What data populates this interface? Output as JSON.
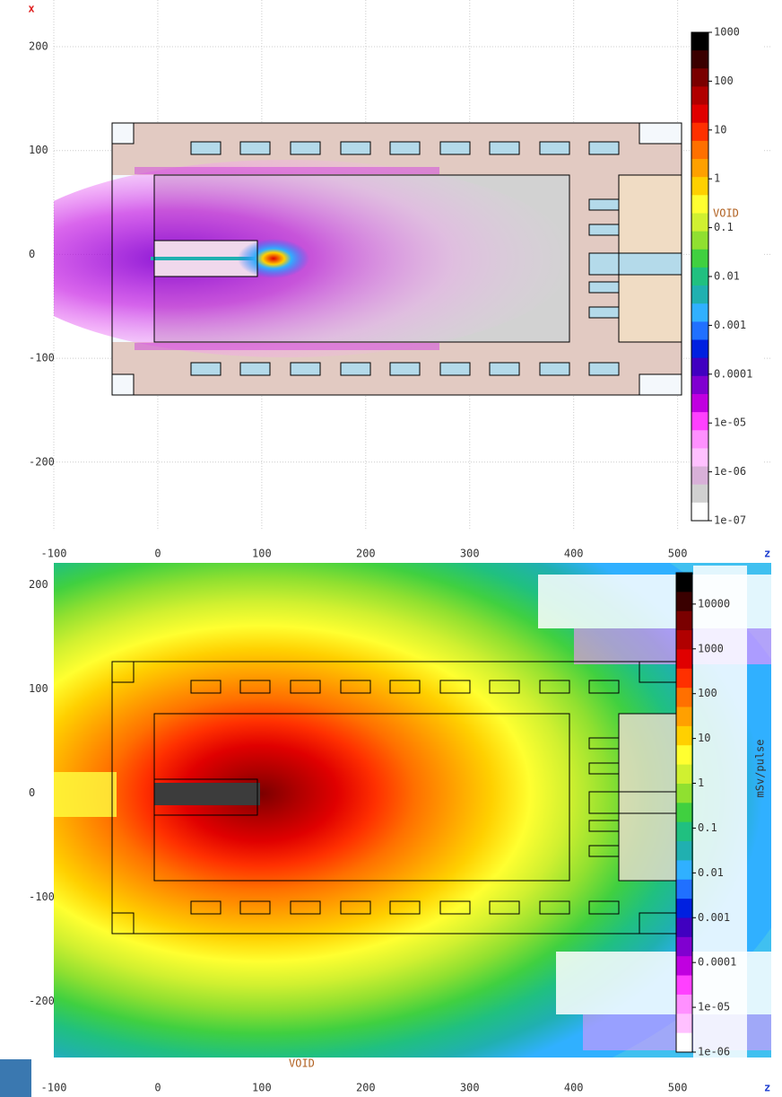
{
  "chart_data": [
    {
      "type": "heatmap",
      "x_label": "z",
      "y_label": "x",
      "xlim": [
        -100,
        590
      ],
      "xticks": [
        -100,
        0,
        100,
        200,
        300,
        400,
        500
      ],
      "ylim": [
        -265,
        245
      ],
      "yticks": [
        -200,
        -100,
        0,
        100,
        200
      ],
      "grid": true,
      "colorbar": {
        "clim": [
          1e-07,
          1000
        ],
        "ticks": [
          1000,
          100,
          10,
          1,
          0.1,
          0.01,
          0.001,
          0.0001,
          {
            "value": 1e-05,
            "label": "1e-05"
          },
          {
            "value": 1e-06,
            "label": "1e-06"
          },
          {
            "value": 1e-07,
            "label": "1e-07"
          }
        ],
        "annotation": "VOID",
        "colors": [
          "#000000",
          "#3a0000",
          "#7a0000",
          "#b00000",
          "#e00000",
          "#ff3000",
          "#ff7000",
          "#ffa000",
          "#ffd000",
          "#ffff30",
          "#d0f030",
          "#90e030",
          "#40d040",
          "#20c080",
          "#20b0b0",
          "#30b0ff",
          "#2070ff",
          "#0020e0",
          "#4000c0",
          "#8000d0",
          "#c000e0",
          "#ff40ff",
          "#ff90ff",
          "#ffc0ff",
          "#d8b0d8",
          "#d0d0d0",
          "#ffffff"
        ]
      }
    },
    {
      "type": "heatmap",
      "x_label": "z",
      "xlim": [
        -100,
        590
      ],
      "xticks": [
        -100,
        0,
        100,
        200,
        300,
        400,
        500
      ],
      "ylim": [
        -254,
        221
      ],
      "yticks": [
        -200,
        -100,
        0,
        100,
        200
      ],
      "grid": false,
      "colorbar": {
        "clim": [
          1e-06,
          50000
        ],
        "label": "mSv/pulse",
        "ticks": [
          10000,
          1000,
          100,
          10,
          1,
          0.1,
          0.01,
          0.001,
          0.0001,
          {
            "value": 1e-05,
            "label": "1e-05"
          },
          {
            "value": 1e-06,
            "label": "1e-06"
          }
        ],
        "annotation": "VOID",
        "colors": [
          "#000000",
          "#3a0000",
          "#7a0000",
          "#b00000",
          "#e00000",
          "#ff3000",
          "#ff7000",
          "#ffa000",
          "#ffd000",
          "#ffff30",
          "#d0f030",
          "#90e030",
          "#40d040",
          "#20c080",
          "#20b0b0",
          "#30b0ff",
          "#2070ff",
          "#0020e0",
          "#4000c0",
          "#8000d0",
          "#c000e0",
          "#ff40ff",
          "#ff90ff",
          "#ffc0ff",
          "#ffffff"
        ]
      }
    }
  ]
}
